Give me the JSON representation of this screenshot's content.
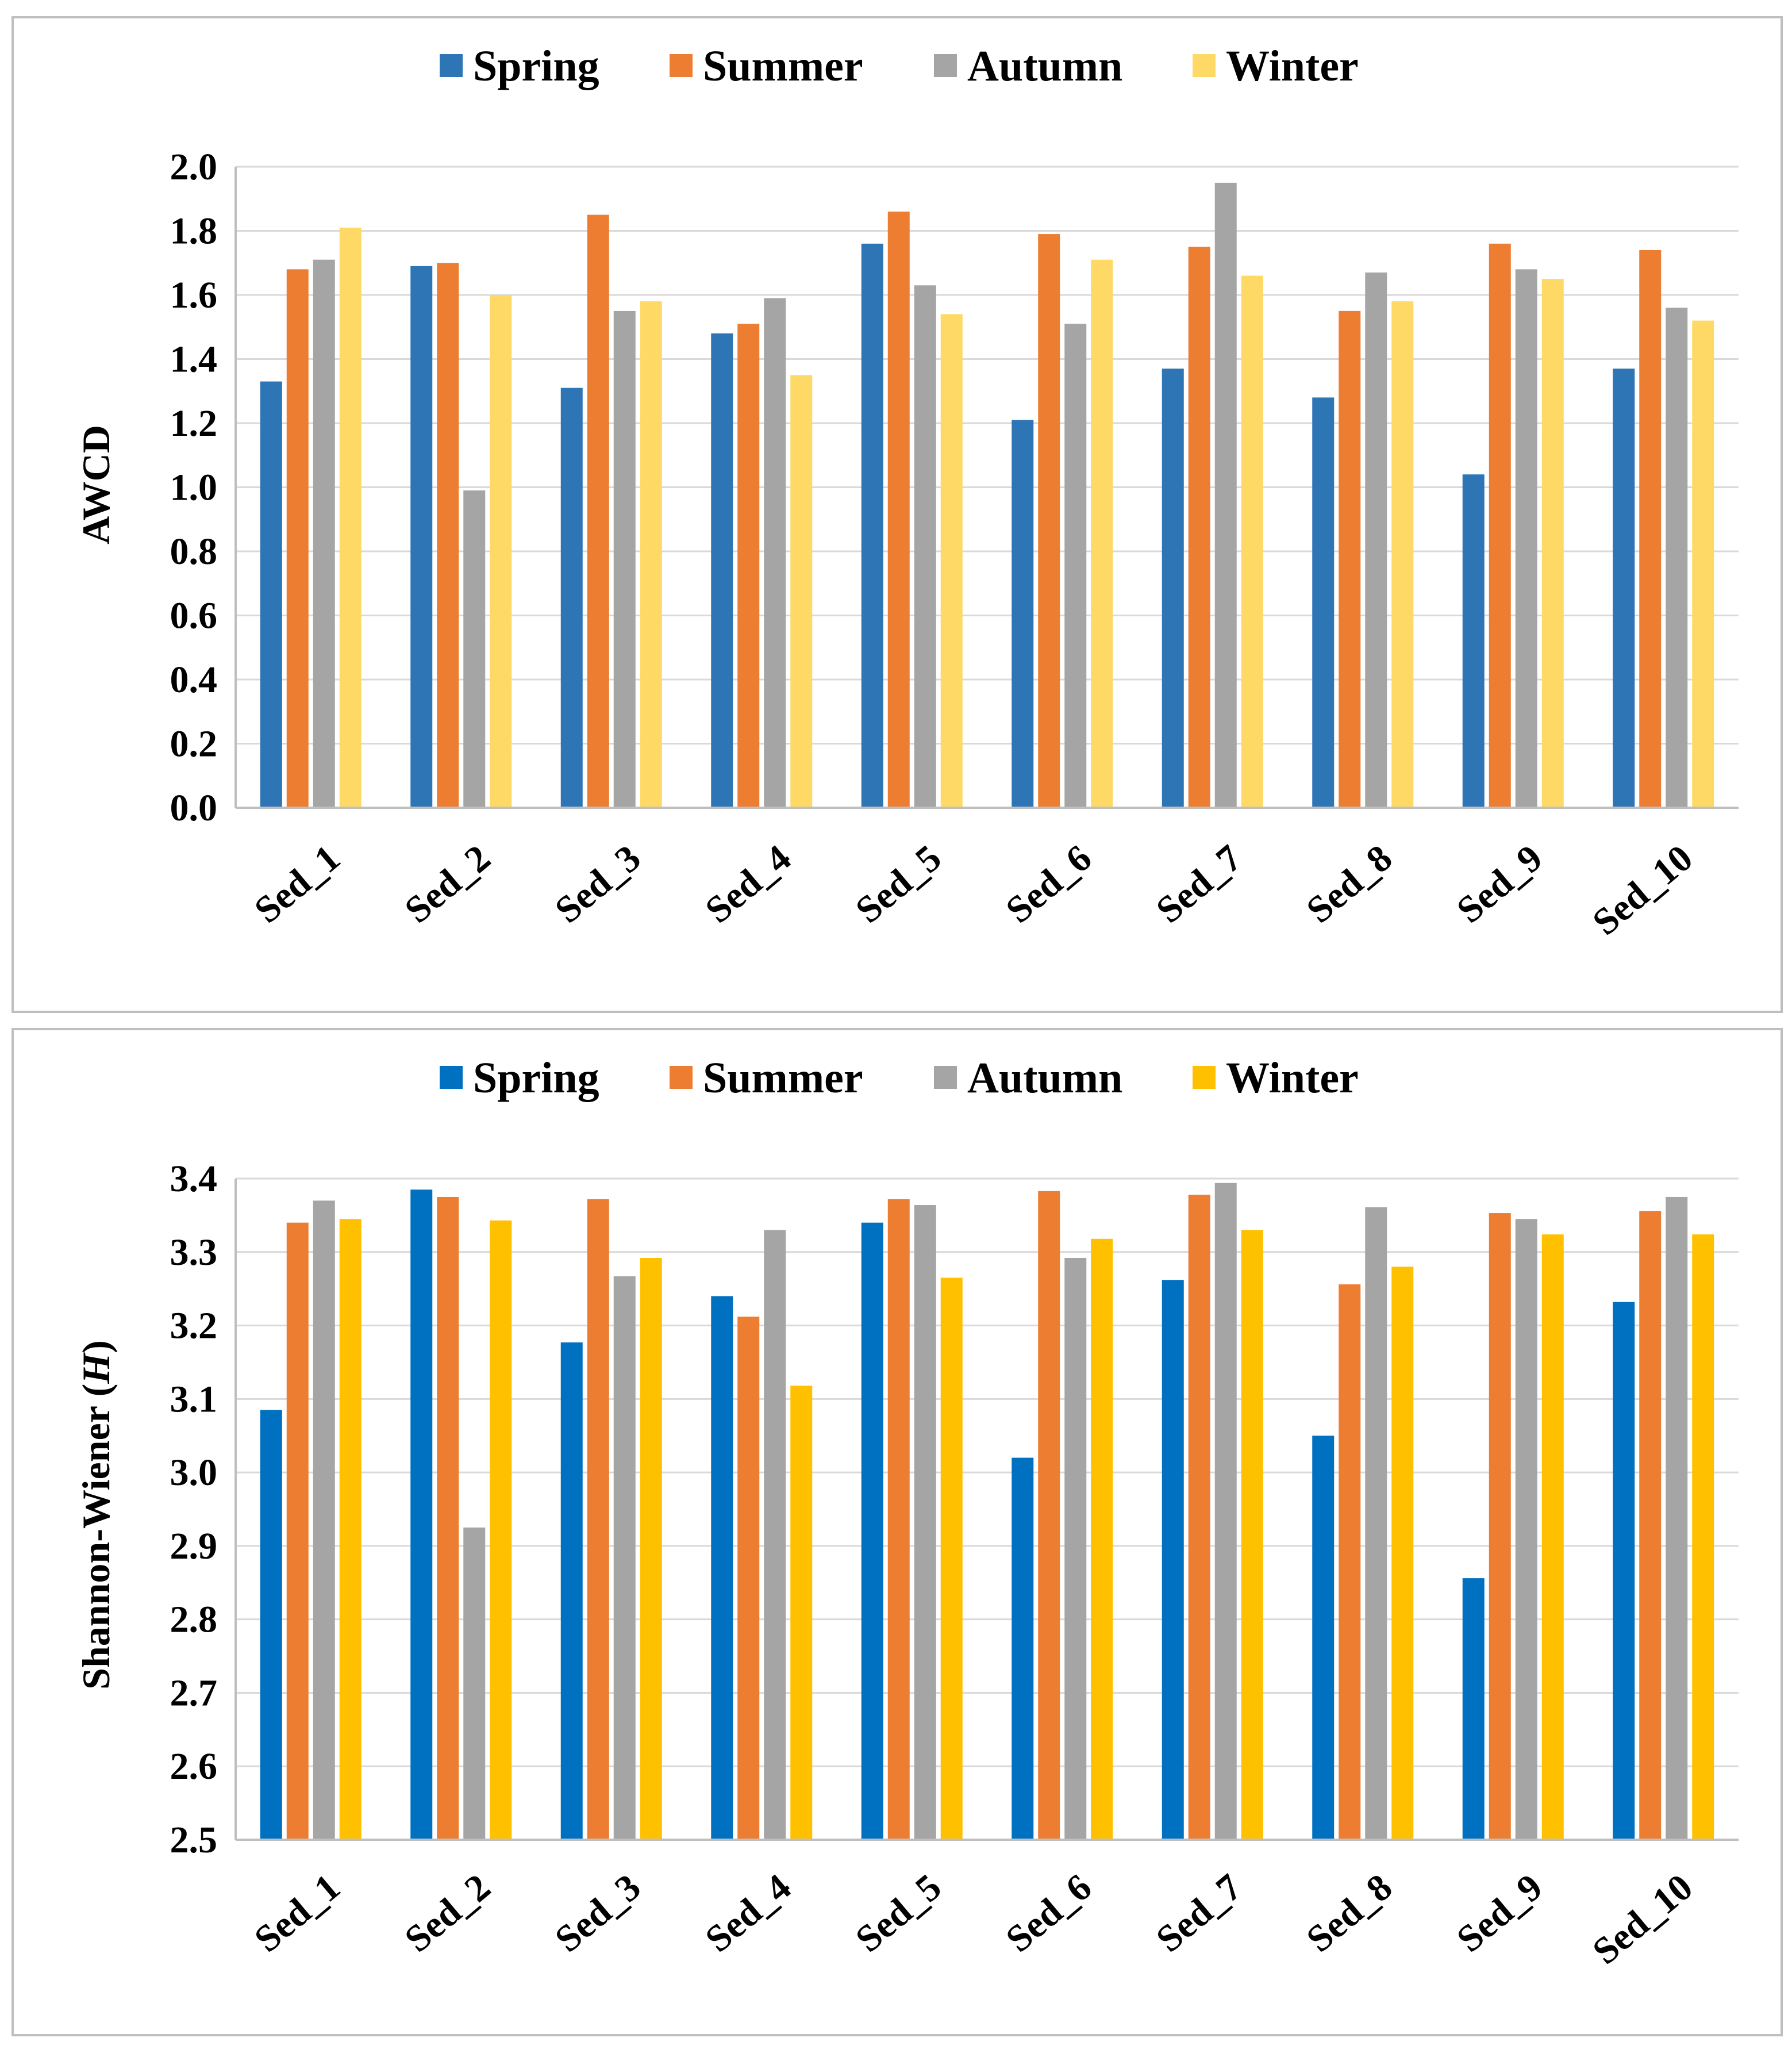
{
  "chart_data": [
    {
      "type": "bar",
      "title": "",
      "xlabel": "",
      "ylabel": "AWCD",
      "ylim": [
        0,
        2.0
      ],
      "ytick_step": 0.2,
      "ytick_decimals": 1,
      "grid": true,
      "legend_position": "top-center",
      "categories": [
        "Sed_1",
        "Sed_2",
        "Sed_3",
        "Sed_4",
        "Sed_5",
        "Sed_6",
        "Sed_7",
        "Sed_8",
        "Sed_9",
        "Sed_10"
      ],
      "series": [
        {
          "name": "Spring",
          "color": "#2e75b6",
          "values": [
            1.33,
            1.69,
            1.31,
            1.48,
            1.76,
            1.21,
            1.37,
            1.28,
            1.04,
            1.37
          ]
        },
        {
          "name": "Summer",
          "color": "#ed7d31",
          "values": [
            1.68,
            1.7,
            1.85,
            1.51,
            1.86,
            1.79,
            1.75,
            1.55,
            1.76,
            1.74
          ]
        },
        {
          "name": "Autumn",
          "color": "#a5a5a5",
          "values": [
            1.71,
            0.99,
            1.55,
            1.59,
            1.63,
            1.51,
            1.95,
            1.67,
            1.68,
            1.56
          ]
        },
        {
          "name": "Winter",
          "color": "#ffd966",
          "values": [
            1.81,
            1.6,
            1.58,
            1.35,
            1.54,
            1.71,
            1.66,
            1.58,
            1.65,
            1.52
          ]
        }
      ]
    },
    {
      "type": "bar",
      "title": "",
      "xlabel": "",
      "ylabel": "Shannon-Wiener (",
      "ylabel_italic": "H",
      "ylabel_suffix": ")",
      "ylim": [
        2.5,
        3.4
      ],
      "ytick_step": 0.1,
      "ytick_decimals": 1,
      "grid": true,
      "legend_position": "top-center",
      "categories": [
        "Sed_1",
        "Sed_2",
        "Sed_3",
        "Sed_4",
        "Sed_5",
        "Sed_6",
        "Sed_7",
        "Sed_8",
        "Sed_9",
        "Sed_10"
      ],
      "series": [
        {
          "name": "Spring",
          "color": "#0070c0",
          "values": [
            3.085,
            3.385,
            3.177,
            3.24,
            3.34,
            3.02,
            3.262,
            3.05,
            2.856,
            3.232
          ]
        },
        {
          "name": "Summer",
          "color": "#ed7d31",
          "values": [
            3.34,
            3.375,
            3.372,
            3.212,
            3.372,
            3.383,
            3.378,
            3.256,
            3.353,
            3.356
          ]
        },
        {
          "name": "Autumn",
          "color": "#a5a5a5",
          "values": [
            3.37,
            2.925,
            3.267,
            3.33,
            3.364,
            3.292,
            3.394,
            3.361,
            3.345,
            3.375
          ]
        },
        {
          "name": "Winter",
          "color": "#ffc000",
          "values": [
            3.345,
            3.343,
            3.292,
            3.118,
            3.265,
            3.318,
            3.33,
            3.28,
            3.324,
            3.324
          ]
        }
      ]
    }
  ]
}
